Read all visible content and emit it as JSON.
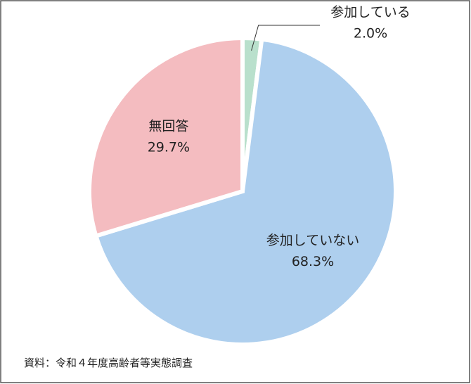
{
  "chart_data": {
    "type": "pie",
    "categories": [
      "参加している",
      "参加していない",
      "無回答"
    ],
    "values": [
      2.0,
      68.3,
      29.7
    ],
    "value_labels": [
      "2.0%",
      "68.3%",
      "29.7%"
    ],
    "colors": [
      "#b9e0cc",
      "#aecfee",
      "#f4bcc0"
    ],
    "source": "資料：令和４年度高齢者等実態調査"
  }
}
